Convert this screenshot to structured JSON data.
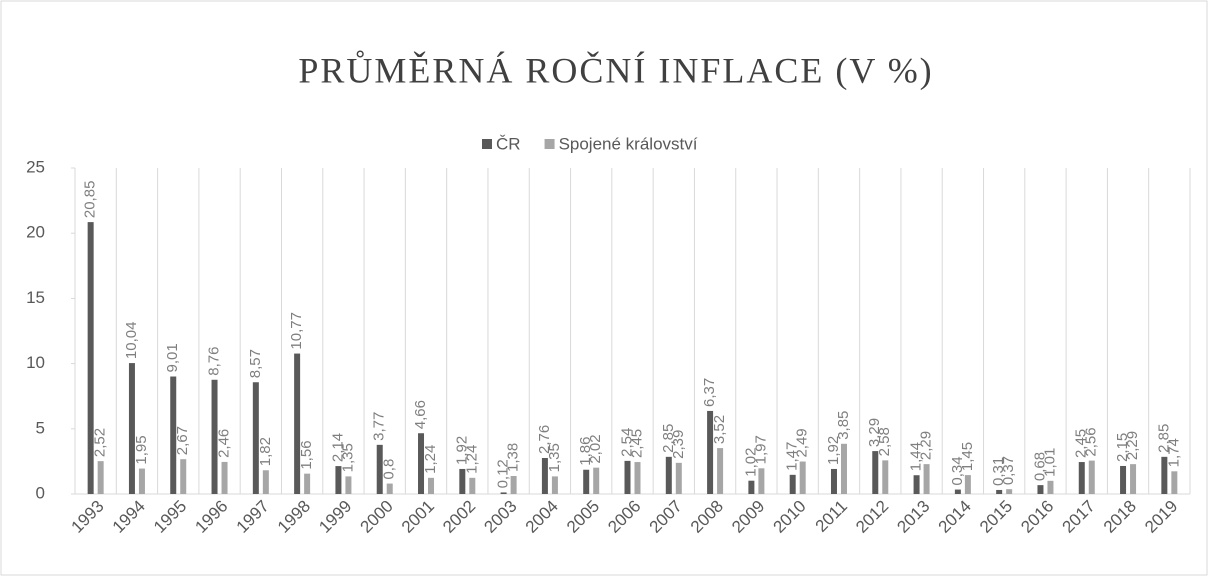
{
  "chart_data": {
    "type": "bar",
    "title": "PRŮMĚRNÁ ROČNÍ INFLACE (V %)",
    "categories": [
      "1993",
      "1994",
      "1995",
      "1996",
      "1997",
      "1998",
      "1999",
      "2000",
      "2001",
      "2002",
      "2003",
      "2004",
      "2005",
      "2006",
      "2007",
      "2008",
      "2009",
      "2010",
      "2011",
      "2012",
      "2013",
      "2014",
      "2015",
      "2016",
      "2017",
      "2018",
      "2019"
    ],
    "series": [
      {
        "name": "ČR",
        "color": "#595959",
        "values": [
          20.85,
          10.04,
          9.01,
          8.76,
          8.57,
          10.77,
          2.14,
          3.77,
          4.66,
          1.92,
          0.12,
          2.76,
          1.86,
          2.54,
          2.85,
          6.37,
          1.02,
          1.47,
          1.92,
          3.29,
          1.44,
          0.34,
          0.31,
          0.68,
          2.45,
          2.15,
          2.85
        ],
        "value_labels": [
          "20,85",
          "10,04",
          "9,01",
          "8,76",
          "8,57",
          "10,77",
          "2,14",
          "3,77",
          "4,66",
          "1,92",
          "0,12",
          "2,76",
          "1,86",
          "2,54",
          "2,85",
          "6,37",
          "1,02",
          "1,47",
          "1,92",
          "3,29",
          "1,44",
          "0,34",
          "0,31",
          "0,68",
          "2,45",
          "2,15",
          "2,85"
        ]
      },
      {
        "name": "Spojené království",
        "color": "#a6a6a6",
        "values": [
          2.52,
          1.95,
          2.67,
          2.46,
          1.82,
          1.56,
          1.35,
          0.8,
          1.24,
          1.24,
          1.38,
          1.35,
          2.02,
          2.45,
          2.39,
          3.52,
          1.97,
          2.49,
          3.85,
          2.58,
          2.29,
          1.45,
          0.37,
          1.01,
          2.56,
          2.29,
          1.74
        ],
        "value_labels": [
          "2,52",
          "1,95",
          "2,67",
          "2,46",
          "1,82",
          "1,56",
          "1,35",
          "0,8",
          "1,24",
          "1,24",
          "1,38",
          "1,35",
          "2,02",
          "2,45",
          "2,39",
          "3,52",
          "1,97",
          "2,49",
          "3,85",
          "2,58",
          "2,29",
          "1,45",
          "0,37",
          "1,01",
          "2,56",
          "2,29",
          "1,74"
        ]
      }
    ],
    "ylim": [
      0,
      25
    ],
    "yticks": [
      0,
      5,
      10,
      15,
      20,
      25
    ],
    "legend": "top"
  }
}
